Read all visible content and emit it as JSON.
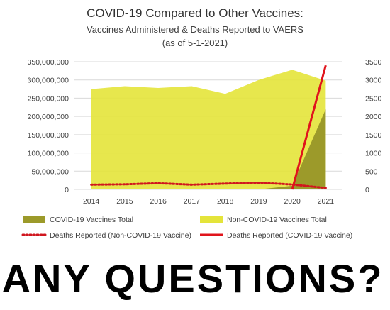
{
  "chart_data": {
    "type": "area",
    "title": "COVID-19 Compared to Other Vaccines:",
    "subtitle_lines": [
      "Vaccines Administered & Deaths Reported to VAERS",
      "(as of 5-1-2021)"
    ],
    "categories": [
      "2014",
      "2015",
      "2016",
      "2017",
      "2018",
      "2019",
      "2020",
      "2021"
    ],
    "y_left": {
      "range": [
        0,
        350000000
      ],
      "ticks": [
        "0",
        "50,000,000",
        "100,000,000",
        "150,000,000",
        "200,000,000",
        "250,000,000",
        "300,000,000",
        "350,000,000"
      ]
    },
    "y_right": {
      "range": [
        0,
        3500
      ],
      "ticks": [
        "0",
        "500",
        "1000",
        "1500",
        "2000",
        "2500",
        "3000",
        "3500"
      ]
    },
    "series": [
      {
        "name": "COVID-19 Vaccines Total",
        "type": "area",
        "axis": "left",
        "color": "#9c9a2a",
        "values": [
          0,
          0,
          0,
          0,
          0,
          0,
          10000000,
          220000000
        ]
      },
      {
        "name": "Non-COVID-19 Vaccines Total",
        "type": "area",
        "axis": "left",
        "color": "#e4e43a",
        "values": [
          275000000,
          283000000,
          278000000,
          283000000,
          262000000,
          300000000,
          328000000,
          298000000
        ]
      },
      {
        "name": "Deaths Reported (Non-COVID-19 Vaccine)",
        "type": "line",
        "style": "dotted",
        "axis": "right",
        "color": "#d0161e",
        "values": [
          130,
          140,
          170,
          130,
          160,
          185,
          135,
          40
        ]
      },
      {
        "name": "Deaths Reported (COVID-19 Vaccine)",
        "type": "line",
        "style": "solid",
        "axis": "right",
        "color": "#e0141c",
        "values": [
          null,
          null,
          null,
          null,
          null,
          null,
          0,
          3400
        ]
      }
    ],
    "legend_placement": "bottom",
    "grid": true
  },
  "caption": "ANY QUESTIONS?"
}
